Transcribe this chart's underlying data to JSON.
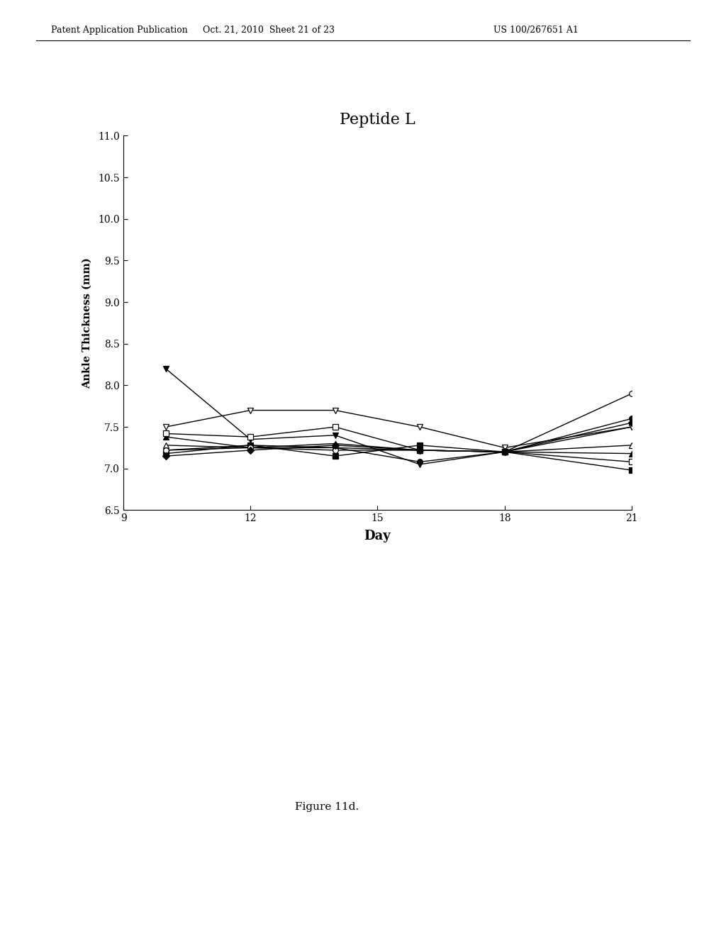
{
  "title": "Peptide L",
  "xlabel": "Day",
  "ylabel": "Ankle Thickness (mm)",
  "xlim": [
    9,
    21
  ],
  "ylim": [
    6.5,
    11.0
  ],
  "yticks": [
    6.5,
    7.0,
    7.5,
    8.0,
    8.5,
    9.0,
    9.5,
    10.0,
    10.5,
    11.0
  ],
  "xticks": [
    9,
    12,
    15,
    18,
    21
  ],
  "caption": "Figure 11d.",
  "header_left": "Patent Application Publication",
  "header_mid": "Oct. 21, 2010  Sheet 21 of 23",
  "header_right": "US 100/267651 A1",
  "series": [
    {
      "name": "filled_inverted_triangle",
      "marker": "v",
      "filled": true,
      "x": [
        10,
        12,
        14,
        16,
        18,
        21
      ],
      "y": [
        8.2,
        7.35,
        7.4,
        7.05,
        7.2,
        7.5
      ]
    },
    {
      "name": "open_inverted_triangle",
      "marker": "v",
      "filled": false,
      "x": [
        10,
        12,
        14,
        16,
        18,
        21
      ],
      "y": [
        7.5,
        7.7,
        7.7,
        7.5,
        7.25,
        7.5
      ]
    },
    {
      "name": "filled_triangle_up",
      "marker": "^",
      "filled": true,
      "x": [
        10,
        12,
        14,
        16,
        18,
        21
      ],
      "y": [
        7.38,
        7.25,
        7.3,
        7.22,
        7.2,
        7.18
      ]
    },
    {
      "name": "open_triangle_up",
      "marker": "^",
      "filled": false,
      "x": [
        10,
        12,
        14,
        16,
        18,
        21
      ],
      "y": [
        7.28,
        7.25,
        7.25,
        7.22,
        7.2,
        7.28
      ]
    },
    {
      "name": "filled_square",
      "marker": "s",
      "filled": true,
      "x": [
        10,
        12,
        14,
        16,
        18,
        21
      ],
      "y": [
        7.18,
        7.28,
        7.15,
        7.28,
        7.2,
        6.98
      ]
    },
    {
      "name": "open_square",
      "marker": "s",
      "filled": false,
      "x": [
        10,
        12,
        14,
        16,
        18,
        21
      ],
      "y": [
        7.42,
        7.38,
        7.5,
        7.22,
        7.2,
        7.08
      ]
    },
    {
      "name": "filled_circle",
      "marker": "o",
      "filled": true,
      "x": [
        10,
        12,
        14,
        16,
        18,
        21
      ],
      "y": [
        7.22,
        7.28,
        7.25,
        7.08,
        7.2,
        7.6
      ]
    },
    {
      "name": "open_circle",
      "marker": "o",
      "filled": false,
      "x": [
        10,
        12,
        14,
        16,
        18,
        21
      ],
      "y": [
        7.22,
        7.25,
        7.22,
        7.22,
        7.2,
        7.9
      ]
    },
    {
      "name": "filled_diamond",
      "marker": "D",
      "filled": true,
      "x": [
        10,
        12,
        14,
        16,
        18,
        21
      ],
      "y": [
        7.15,
        7.22,
        7.28,
        7.22,
        7.2,
        7.55
      ]
    }
  ]
}
